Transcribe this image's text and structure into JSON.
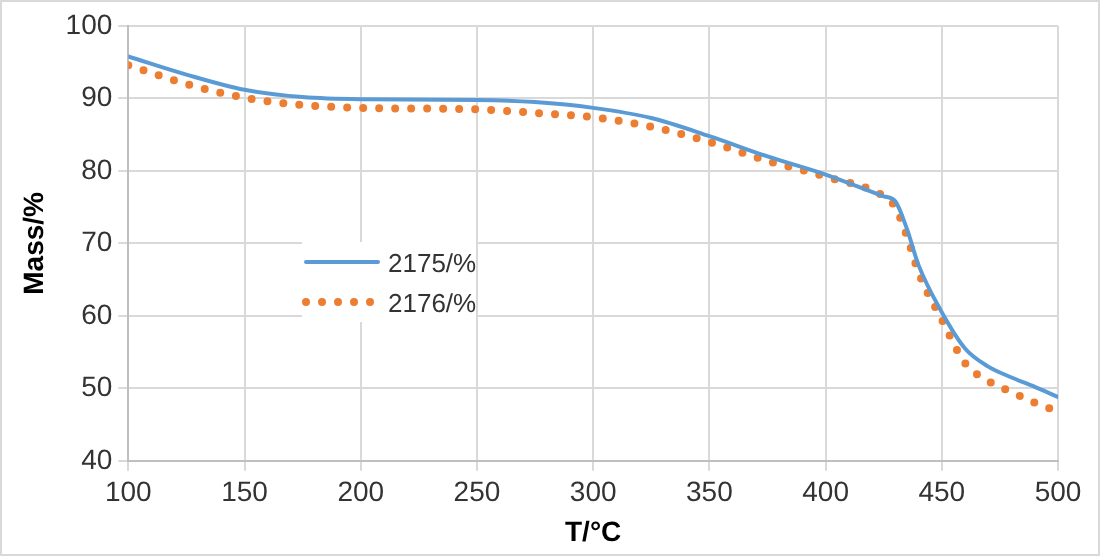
{
  "chart_data": {
    "type": "line",
    "xlabel": "T/°C",
    "ylabel": "Mass/%",
    "xlim": [
      100,
      500
    ],
    "xticks": [
      100,
      150,
      200,
      250,
      300,
      350,
      400,
      450,
      500
    ],
    "ylim": [
      40,
      100
    ],
    "yticks": [
      40,
      50,
      60,
      70,
      80,
      90,
      100
    ],
    "grid": true,
    "legend": "left",
    "marker": "none",
    "x": [
      100,
      125,
      150,
      175,
      200,
      250,
      275,
      300,
      325,
      350,
      375,
      400,
      425,
      430,
      435,
      440,
      450,
      460,
      470,
      480,
      490,
      500
    ],
    "series": [
      {
        "name": "2175/%",
        "color": "#5b9bd5",
        "line_style": "solid",
        "values": [
          95.8,
          93.3,
          91.2,
          90.2,
          89.9,
          89.8,
          89.5,
          88.7,
          87.3,
          84.8,
          82,
          79.5,
          76.5,
          75.8,
          72,
          67,
          60.5,
          55.5,
          53,
          51.5,
          50.2,
          48.8
        ]
      },
      {
        "name": "2176/%",
        "color": "#ed7d31",
        "line_style": "dotted",
        "values": [
          94.6,
          92,
          90.1,
          89.1,
          88.7,
          88.5,
          88,
          87.4,
          86.1,
          84,
          81.4,
          79.2,
          76.5,
          75,
          71,
          66,
          59.5,
          53.5,
          51,
          49.5,
          48,
          46.8
        ]
      }
    ]
  }
}
